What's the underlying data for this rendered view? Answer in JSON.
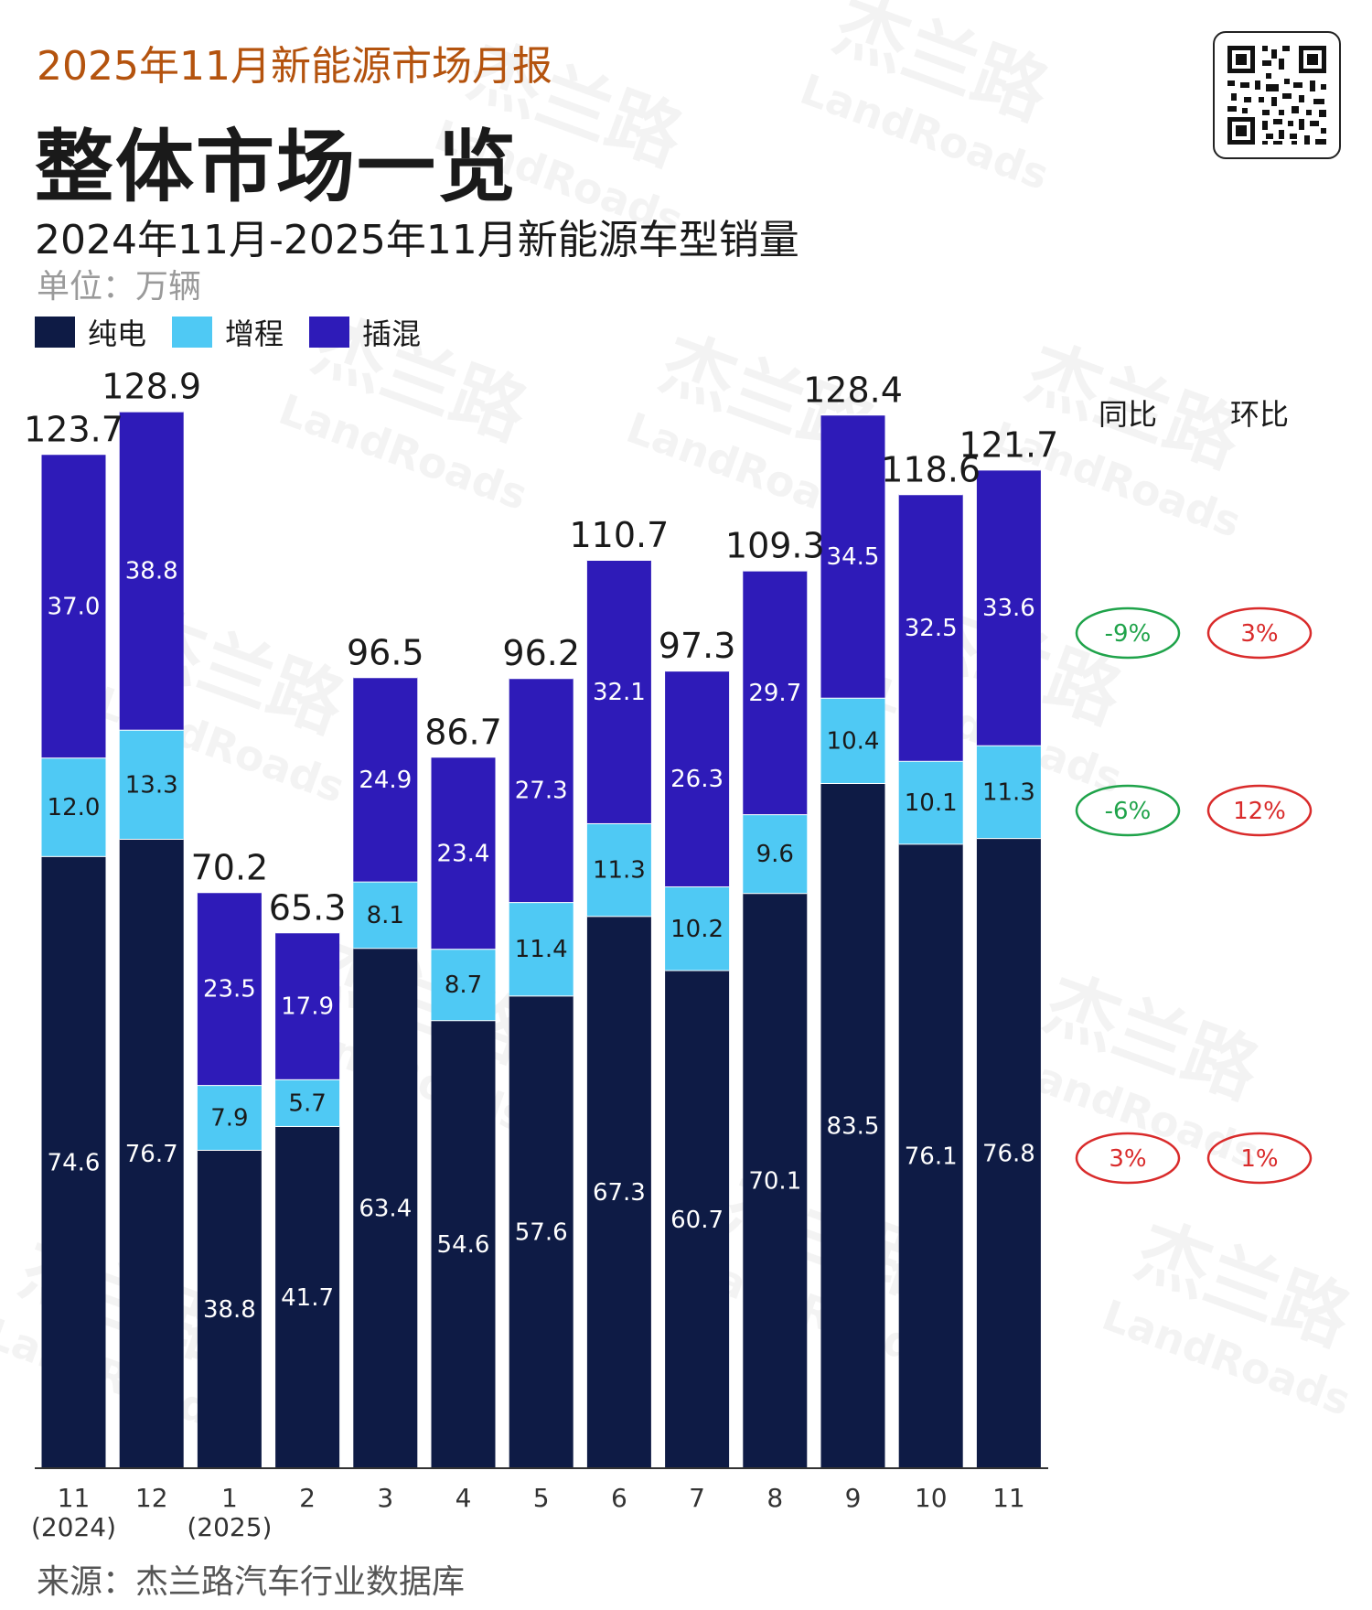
{
  "header": {
    "eyebrow": "2025年11月新能源市场月报",
    "title": "整体市场一览",
    "subtitle": "2024年11月-2025年11月新能源车型销量",
    "unit": "单位：万辆"
  },
  "legend": [
    {
      "label": "纯电",
      "color": "#0e1b45"
    },
    {
      "label": "增程",
      "color": "#4fc9f4"
    },
    {
      "label": "插混",
      "color": "#2e1bb8"
    }
  ],
  "watermark": {
    "cn": "杰兰路",
    "en": "LandRoads"
  },
  "chart_data": {
    "type": "bar",
    "stacked": true,
    "title": "2024年11月-2025年11月新能源车型销量",
    "ylabel": "万辆",
    "categories": [
      "11",
      "12",
      "1",
      "2",
      "3",
      "4",
      "5",
      "6",
      "7",
      "8",
      "9",
      "10",
      "11"
    ],
    "category_sublabels": [
      "(2024)",
      "",
      "(2025)",
      "",
      "",
      "",
      "",
      "",
      "",
      "",
      "",
      "",
      ""
    ],
    "series": [
      {
        "name": "纯电",
        "color": "#0e1b45",
        "values": [
          74.6,
          76.7,
          38.8,
          41.7,
          63.4,
          54.6,
          57.6,
          67.3,
          60.7,
          70.1,
          83.5,
          76.1,
          76.8
        ]
      },
      {
        "name": "增程",
        "color": "#4fc9f4",
        "values": [
          12.0,
          13.3,
          7.9,
          5.7,
          8.1,
          8.7,
          11.4,
          11.3,
          10.2,
          9.6,
          10.4,
          10.1,
          11.3
        ]
      },
      {
        "name": "插混",
        "color": "#2e1bb8",
        "values": [
          37.0,
          38.8,
          23.5,
          17.9,
          24.9,
          23.4,
          27.3,
          32.1,
          26.3,
          29.7,
          34.5,
          32.5,
          33.6
        ]
      }
    ],
    "totals": [
      "123.7",
      "128.9",
      "70.2",
      "65.3",
      "96.5",
      "86.7",
      "96.2",
      "110.7",
      "97.3",
      "109.3",
      "128.4",
      "118.6",
      "121.7"
    ],
    "ylim": [
      0,
      135
    ],
    "comparison": {
      "headers": [
        "同比",
        "环比"
      ],
      "rows": [
        {
          "series": "插混",
          "yoy": "-9%",
          "yoy_color": "#1fa34a",
          "mom": "3%",
          "mom_color": "#d92b2b"
        },
        {
          "series": "增程",
          "yoy": "-6%",
          "yoy_color": "#1fa34a",
          "mom": "12%",
          "mom_color": "#d92b2b"
        },
        {
          "series": "纯电",
          "yoy": "3%",
          "yoy_color": "#d92b2b",
          "mom": "1%",
          "mom_color": "#d92b2b"
        }
      ]
    }
  },
  "footer": {
    "source": "来源：杰兰路汽车行业数据库"
  }
}
